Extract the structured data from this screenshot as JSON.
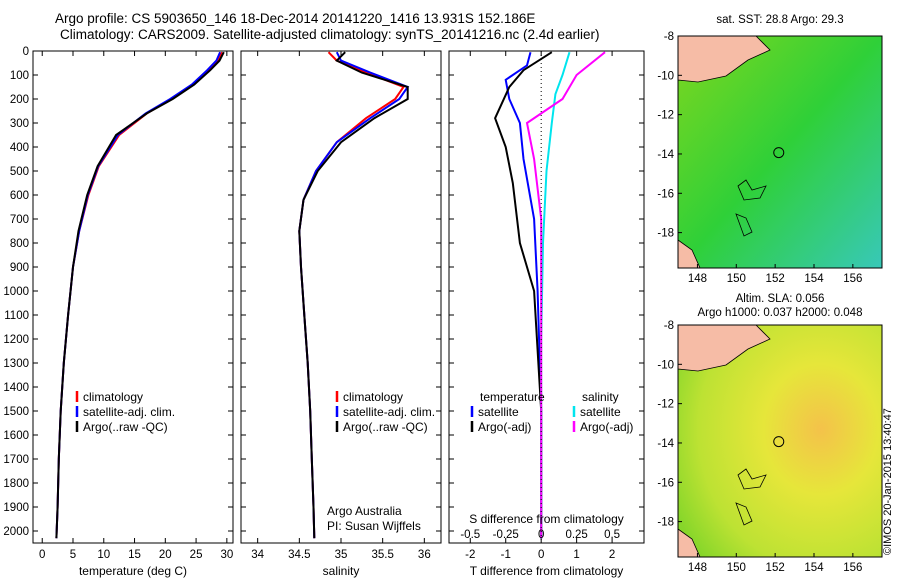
{
  "header": {
    "line1": "Argo profile: CS 5903650_146 18-Dec-2014 20141220_1416 13.931S 152.186E",
    "line2": "Climatology: CARS2009. Satellite-adjusted climatology: synTS_20141216.nc (2.4d earlier)"
  },
  "colors": {
    "climatology": "#ff0000",
    "satellite": "#0000ff",
    "argo": "#000000",
    "sat_salinity": "#00e5ee",
    "argo_salinity": "#ff00ff"
  },
  "depth_axis": {
    "ticks": [
      "0",
      "100",
      "200",
      "300",
      "400",
      "500",
      "600",
      "700",
      "800",
      "900",
      "1000",
      "1100",
      "1200",
      "1300",
      "1400",
      "1500",
      "1600",
      "1700",
      "1800",
      "1900",
      "2000"
    ],
    "range": [
      0,
      2050
    ]
  },
  "chart_data": [
    {
      "type": "line",
      "name": "temperature",
      "xlabel": "temperature (deg C)",
      "xlim": [
        -1.5,
        31
      ],
      "xticks": [
        "0",
        "5",
        "10",
        "15",
        "20",
        "25",
        "30"
      ],
      "ylim": [
        0,
        2050
      ],
      "legend": [
        "climatology",
        "satellite-adj. clim.",
        "Argo(..raw -QC)"
      ],
      "series": [
        {
          "name": "climatology",
          "x": [
            29.2,
            28.5,
            27.0,
            24.5,
            21.0,
            17.0,
            12.5,
            9.2,
            7.5,
            6.0,
            5.0,
            4.2,
            3.5,
            3.0,
            2.7,
            2.5,
            2.3
          ],
          "y": [
            5,
            40,
            80,
            140,
            200,
            260,
            350,
            480,
            600,
            750,
            900,
            1100,
            1300,
            1500,
            1700,
            1900,
            2030
          ]
        },
        {
          "name": "satellite-adj. clim.",
          "x": [
            28.9,
            28.3,
            26.8,
            24.3,
            20.8,
            16.8,
            12.3,
            9.1,
            7.4,
            6.0,
            5.0,
            4.2,
            3.5,
            3.0,
            2.7,
            2.5,
            2.3
          ],
          "y": [
            5,
            40,
            80,
            140,
            200,
            260,
            350,
            480,
            600,
            750,
            900,
            1100,
            1300,
            1500,
            1700,
            1900,
            2030
          ]
        },
        {
          "name": "Argo",
          "x": [
            29.5,
            28.8,
            27.3,
            24.7,
            21.2,
            17.0,
            12.0,
            9.0,
            7.3,
            5.9,
            5.0,
            4.2,
            3.5,
            3.0,
            2.7,
            2.5,
            2.3
          ],
          "y": [
            5,
            40,
            80,
            140,
            200,
            260,
            350,
            480,
            600,
            750,
            900,
            1100,
            1300,
            1500,
            1700,
            1900,
            2030
          ]
        }
      ]
    },
    {
      "type": "line",
      "name": "salinity",
      "xlabel": "salinity",
      "xlim": [
        33.8,
        36.2
      ],
      "xticks": [
        "34",
        "34.5",
        "35",
        "35.5",
        "36"
      ],
      "ylim": [
        0,
        2050
      ],
      "legend": [
        "climatology",
        "satellite-adj. clim.",
        "Argo(..raw -QC)"
      ],
      "annotation": [
        "Argo Australia",
        "PI: Susan Wijffels"
      ],
      "series": [
        {
          "name": "climatology",
          "x": [
            34.85,
            34.95,
            35.3,
            35.75,
            35.65,
            35.3,
            34.95,
            34.7,
            34.55,
            34.5,
            34.52,
            34.56,
            34.6,
            34.63,
            34.65,
            34.67,
            34.68
          ],
          "y": [
            5,
            40,
            90,
            150,
            200,
            280,
            380,
            500,
            620,
            750,
            900,
            1100,
            1300,
            1500,
            1700,
            1900,
            2030
          ]
        },
        {
          "name": "satellite-adj. clim.",
          "x": [
            34.95,
            35.0,
            35.35,
            35.8,
            35.7,
            35.35,
            34.95,
            34.7,
            34.55,
            34.5,
            34.52,
            34.56,
            34.6,
            34.63,
            34.65,
            34.67,
            34.68
          ],
          "y": [
            5,
            40,
            90,
            150,
            200,
            280,
            380,
            500,
            620,
            750,
            900,
            1100,
            1300,
            1500,
            1700,
            1900,
            2030
          ]
        },
        {
          "name": "Argo",
          "x": [
            35.05,
            34.95,
            35.25,
            35.8,
            35.8,
            35.4,
            35.0,
            34.72,
            34.55,
            34.5,
            34.52,
            34.56,
            34.6,
            34.63,
            34.65,
            34.67,
            34.68
          ],
          "y": [
            5,
            40,
            90,
            150,
            200,
            280,
            380,
            500,
            620,
            750,
            900,
            1100,
            1300,
            1500,
            1700,
            1900,
            2030
          ]
        }
      ]
    },
    {
      "type": "line",
      "name": "differences",
      "xlabel": "T difference from climatology",
      "xlim": [
        -2.6,
        2.9
      ],
      "xticks": [
        "-2",
        "-1",
        "0",
        "1",
        "2"
      ],
      "top_label": "S difference from climatology",
      "top_ticks": [
        "-0.5",
        "-0.25",
        "0",
        "0.25",
        "0.5"
      ],
      "ylim": [
        0,
        2050
      ],
      "legend": [
        "temperature",
        "satellite",
        "Argo(-adj)",
        "salinity",
        "satellite",
        "Argo(-adj)"
      ],
      "series": [
        {
          "name": "temperature satellite",
          "x": [
            -0.3,
            -0.4,
            -1.0,
            -0.9,
            -0.6,
            -0.5,
            -0.2,
            -0.1,
            0.0,
            0.0
          ],
          "y": [
            5,
            60,
            120,
            200,
            300,
            450,
            700,
            1000,
            1500,
            2030
          ]
        },
        {
          "name": "temperature Argo(-adj)",
          "x": [
            0.3,
            -0.5,
            -0.9,
            -1.3,
            -1.0,
            -0.8,
            -0.6,
            -0.2,
            0.0,
            0.0
          ],
          "y": [
            5,
            80,
            150,
            280,
            400,
            550,
            800,
            1000,
            1500,
            2030
          ]
        },
        {
          "name": "salinity satellite",
          "x": [
            0.8,
            0.6,
            0.4,
            0.3,
            0.15,
            0.05,
            0.0,
            0.0
          ],
          "y": [
            5,
            100,
            180,
            300,
            500,
            800,
            1200,
            2030
          ]
        },
        {
          "name": "salinity Argo(-adj)",
          "x": [
            1.8,
            1.0,
            0.6,
            -0.4,
            -0.2,
            0.0,
            0.0
          ],
          "y": [
            5,
            100,
            200,
            300,
            450,
            700,
            2030
          ]
        }
      ]
    }
  ],
  "maps": {
    "sst_title": "sat. SST: 28.8 Argo: 29.3",
    "sla_title1": "Altim. SLA: 0.056",
    "sla_title2": "Argo h1000: 0.037 h2000: 0.048",
    "lat_ticks": [
      "-8",
      "-10",
      "-12",
      "-14",
      "-16",
      "-18"
    ],
    "lon_ticks": [
      "148",
      "150",
      "152",
      "154",
      "156"
    ],
    "float_position": {
      "lon": 152.186,
      "lat": -13.931
    },
    "lon_range": [
      147,
      157.5
    ],
    "lat_range": [
      -19.8,
      -8
    ]
  },
  "footer": "©IMOS 20-Jan-2015 13:40:47"
}
